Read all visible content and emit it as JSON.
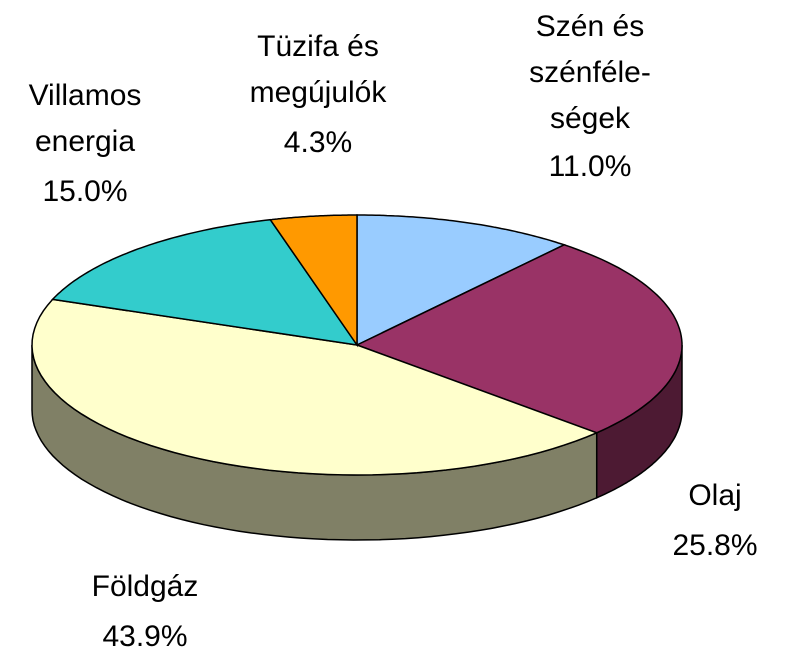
{
  "chart_data": {
    "type": "pie3d",
    "categories": [
      "Szén és\nszénféle-\nségek",
      "Olaj",
      "Földgáz",
      "Villamos\nenergia",
      "Tüzifa és\nmegújulók"
    ],
    "values": [
      11.0,
      25.8,
      43.9,
      15.0,
      4.3
    ],
    "value_labels": [
      "11.0%",
      "25.8%",
      "43.9%",
      "15.0%",
      "4.3%"
    ],
    "colors": [
      "#99ccff",
      "#993366",
      "#ffffcc",
      "#33cccc",
      "#ff9900"
    ]
  }
}
